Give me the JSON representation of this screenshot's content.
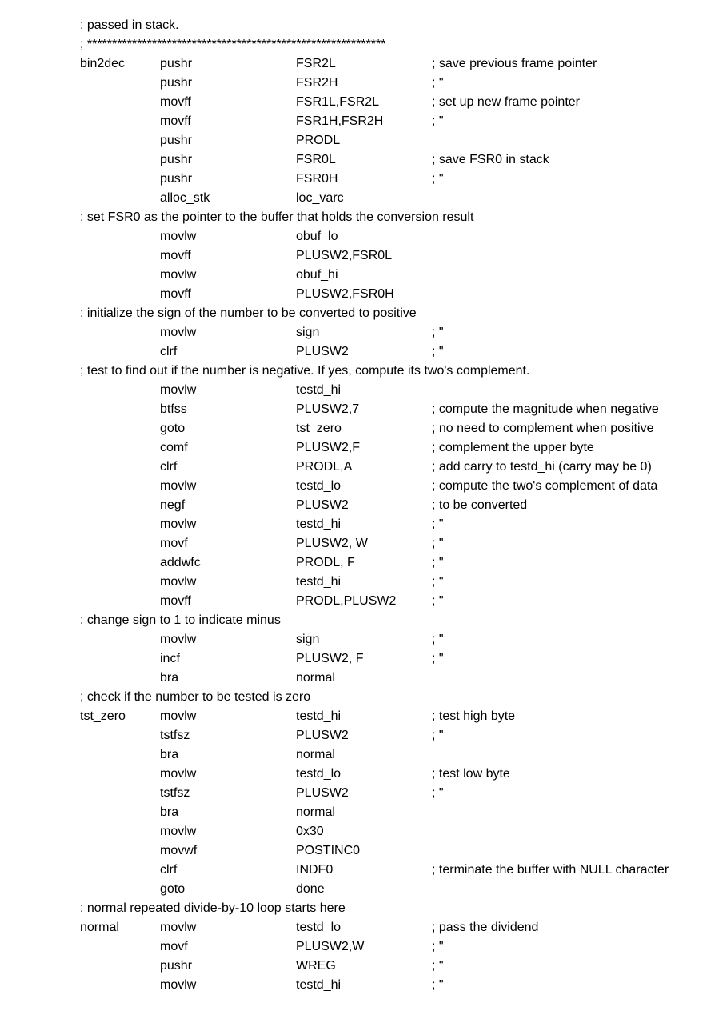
{
  "lines": [
    {
      "type": "full",
      "text": "; passed in stack."
    },
    {
      "type": "full",
      "text": "; ************************************************************"
    },
    {
      "label": "bin2dec",
      "op": "pushr",
      "arg": "FSR2L",
      "cmt": "; save previous frame pointer"
    },
    {
      "label": "",
      "op": "pushr",
      "arg": "FSR2H",
      "cmt": "; \""
    },
    {
      "label": "",
      "op": "movff",
      "arg": "FSR1L,FSR2L",
      "cmt": "; set up new frame pointer"
    },
    {
      "label": "",
      "op": "movff",
      "arg": "FSR1H,FSR2H",
      "cmt": "; \""
    },
    {
      "label": "",
      "op": "pushr",
      "arg": "PRODL",
      "cmt": ""
    },
    {
      "label": "",
      "op": "pushr",
      "arg": "FSR0L",
      "cmt": "; save FSR0 in stack"
    },
    {
      "label": "",
      "op": "pushr",
      "arg": "FSR0H",
      "cmt": "; \""
    },
    {
      "label": "",
      "op": "alloc_stk",
      "arg": "loc_varc",
      "cmt": ""
    },
    {
      "type": "full",
      "text": "; set FSR0 as the pointer to the buffer that holds the conversion result"
    },
    {
      "label": "",
      "op": "movlw",
      "arg": "obuf_lo",
      "cmt": ""
    },
    {
      "label": "",
      "op": "movff",
      "arg": "PLUSW2,FSR0L",
      "cmt": ""
    },
    {
      "label": "",
      "op": "movlw",
      "arg": "obuf_hi",
      "cmt": ""
    },
    {
      "label": "",
      "op": "movff",
      "arg": "PLUSW2,FSR0H",
      "cmt": ""
    },
    {
      "type": "full",
      "text": "; initialize the sign of the number to be converted to positive"
    },
    {
      "label": "",
      "op": "movlw",
      "arg": "sign",
      "cmt": "; \""
    },
    {
      "label": "",
      "op": "clrf",
      "arg": "PLUSW2",
      "cmt": "; \""
    },
    {
      "type": "full",
      "text": "; test to find out if the number is negative. If yes, compute its two's complement."
    },
    {
      "label": "",
      "op": "movlw",
      "arg": "testd_hi",
      "cmt": ""
    },
    {
      "label": "",
      "op": "btfss",
      "arg": "PLUSW2,7",
      "cmt": "; compute the magnitude when negative"
    },
    {
      "label": "",
      "op": "goto",
      "arg": "tst_zero",
      "cmt": "; no need to complement when positive"
    },
    {
      "label": "",
      "op": "comf",
      "arg": "PLUSW2,F",
      "cmt": "; complement the upper byte"
    },
    {
      "label": "",
      "op": "clrf",
      "arg": "PRODL,A",
      "cmt": "; add carry to testd_hi (carry may be 0)"
    },
    {
      "label": "",
      "op": "movlw",
      "arg": "testd_lo",
      "cmt": "; compute the two's complement of data"
    },
    {
      "label": "",
      "op": "negf",
      "arg": "PLUSW2",
      "cmt": "; to be converted"
    },
    {
      "label": "",
      "op": "movlw",
      "arg": "testd_hi",
      "cmt": "; \""
    },
    {
      "label": "",
      "op": "movf",
      "arg": "PLUSW2, W",
      "cmt": "; \""
    },
    {
      "label": "",
      "op": "addwfc",
      "arg": "PRODL, F",
      "cmt": "; \""
    },
    {
      "label": "",
      "op": "movlw",
      "arg": "testd_hi",
      "cmt": "; \""
    },
    {
      "label": "",
      "op": "movff",
      "arg": "PRODL,PLUSW2",
      "cmt": "; \""
    },
    {
      "type": "full",
      "text": "; change sign to 1 to indicate minus"
    },
    {
      "label": "",
      "op": "movlw",
      "arg": "sign",
      "cmt": "; \""
    },
    {
      "label": "",
      "op": "incf",
      "arg": "PLUSW2, F",
      "cmt": "; \""
    },
    {
      "label": "",
      "op": "bra",
      "arg": "normal",
      "cmt": ""
    },
    {
      "type": "full",
      "text": "; check if the number to be tested is zero"
    },
    {
      "label": "tst_zero",
      "op": "movlw",
      "arg": "testd_hi",
      "cmt": "; test high byte"
    },
    {
      "label": "",
      "op": "tstfsz",
      "arg": "PLUSW2",
      "cmt": "; \""
    },
    {
      "label": "",
      "op": "bra",
      "arg": "normal",
      "cmt": ""
    },
    {
      "label": "",
      "op": "movlw",
      "arg": "testd_lo",
      "cmt": "; test low byte"
    },
    {
      "label": "",
      "op": "tstfsz",
      "arg": "PLUSW2",
      "cmt": "; \""
    },
    {
      "label": "",
      "op": "bra",
      "arg": "normal",
      "cmt": ""
    },
    {
      "label": "",
      "op": "movlw",
      "arg": "0x30",
      "cmt": ""
    },
    {
      "label": "",
      "op": "movwf",
      "arg": "POSTINC0",
      "cmt": ""
    },
    {
      "label": "",
      "op": "clrf",
      "arg": "INDF0",
      "cmt": "; terminate the buffer with NULL character"
    },
    {
      "label": "",
      "op": "goto",
      "arg": "done",
      "cmt": ""
    },
    {
      "type": "full",
      "text": "; normal repeated divide-by-10 loop starts here"
    },
    {
      "label": "normal",
      "op": "movlw",
      "arg": "testd_lo",
      "cmt": "; pass the dividend"
    },
    {
      "label": "",
      "op": "movf",
      "arg": "PLUSW2,W",
      "cmt": "; \""
    },
    {
      "label": "",
      "op": "pushr",
      "arg": "WREG",
      "cmt": "; \""
    },
    {
      "label": "",
      "op": "movlw",
      "arg": "testd_hi",
      "cmt": "; \""
    }
  ]
}
